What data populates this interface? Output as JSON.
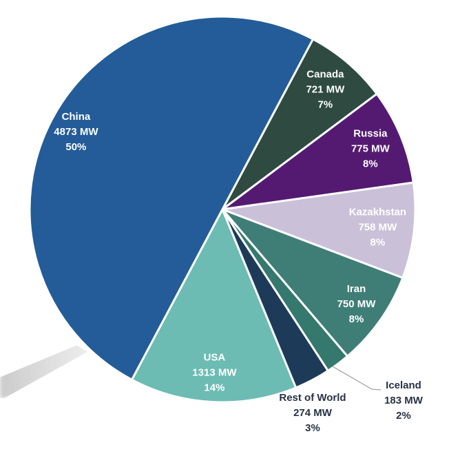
{
  "page": {
    "background": "#FFFFFF"
  },
  "chart_data": {
    "type": "pie",
    "title": "",
    "unit": "MW",
    "direction": "clockwise",
    "start_angle_deg": 28,
    "legend_position": "none",
    "grid": false,
    "inside_label_color": "#FFFFFF",
    "outside_label_color": "#273244",
    "leader_line_color": "#A3A3A3",
    "slice_border_color": "#FFFFFF",
    "segments": [
      {
        "name": "Canada",
        "value_mw": 721,
        "value_label": "721 MW",
        "percent": 7,
        "percent_label": "7%",
        "color": "#2F4B41",
        "label_placement": "inside"
      },
      {
        "name": "Russia",
        "value_mw": 775,
        "value_label": "775 MW",
        "percent": 8,
        "percent_label": "8%",
        "color": "#541A72",
        "label_placement": "inside"
      },
      {
        "name": "Kazakhstan",
        "value_mw": 758,
        "value_label": "758 MW",
        "percent": 8,
        "percent_label": "8%",
        "color": "#CAC1D9",
        "label_placement": "inside"
      },
      {
        "name": "Iran",
        "value_mw": 750,
        "value_label": "750 MW",
        "percent": 8,
        "percent_label": "8%",
        "color": "#3F7E77",
        "label_placement": "inside"
      },
      {
        "name": "Iceland",
        "value_mw": 183,
        "value_label": "183 MW",
        "percent": 2,
        "percent_label": "2%",
        "color": "#35786D",
        "label_placement": "outside-leader"
      },
      {
        "name": "Rest of World",
        "value_mw": 274,
        "value_label": "274 MW",
        "percent": 3,
        "percent_label": "3%",
        "color": "#1D3A59",
        "label_placement": "outside"
      },
      {
        "name": "USA",
        "value_mw": 1313,
        "value_label": "1313 MW",
        "percent": 14,
        "percent_label": "14%",
        "color": "#6CBCB3",
        "label_placement": "inside"
      },
      {
        "name": "China",
        "value_mw": 4873,
        "value_label": "4873 MW",
        "percent": 50,
        "percent_label": "50%",
        "color": "#235C98",
        "label_placement": "inside"
      }
    ]
  }
}
